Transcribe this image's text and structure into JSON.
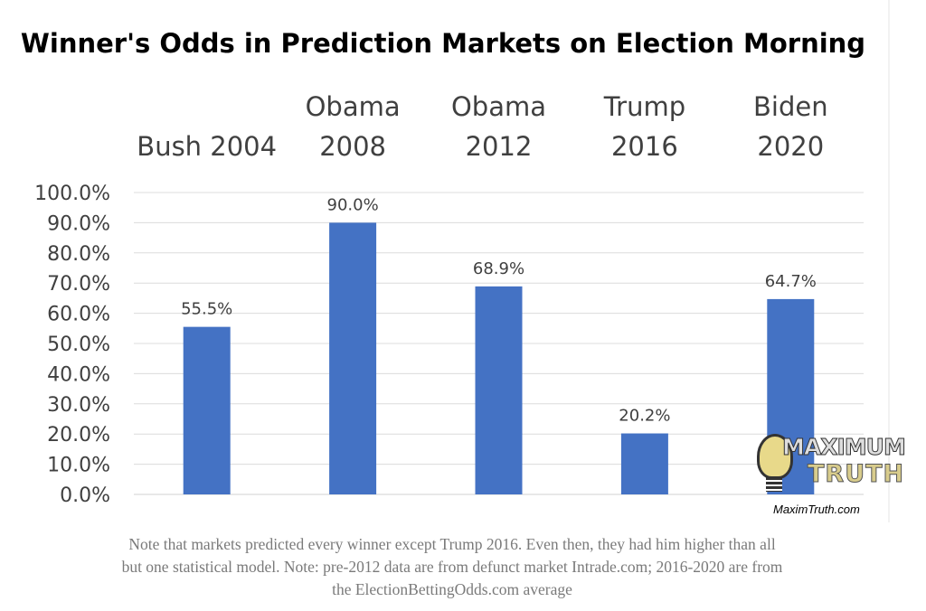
{
  "chart_data": {
    "type": "bar",
    "title": "Winner's Odds in Prediction Markets on Election Morning",
    "categories": [
      [
        "Bush 2004"
      ],
      [
        "Obama",
        "2008"
      ],
      [
        "Obama",
        "2012"
      ],
      [
        "Trump",
        "2016"
      ],
      [
        "Biden",
        "2020"
      ]
    ],
    "values": [
      55.5,
      90.0,
      68.9,
      20.2,
      64.7
    ],
    "data_labels": [
      "55.5%",
      "90.0%",
      "68.9%",
      "20.2%",
      "64.7%"
    ],
    "ylim": [
      0,
      100
    ],
    "yticks": [
      "0.0%",
      "10.0%",
      "20.0%",
      "30.0%",
      "40.0%",
      "50.0%",
      "60.0%",
      "70.0%",
      "80.0%",
      "90.0%",
      "100.0%"
    ],
    "xlabel": "",
    "ylabel": "",
    "grid": true,
    "category_labels_position": "top",
    "bar_color": "#4472c4"
  },
  "note": "Note that markets predicted every winner except Trump 2016. Even then, they had him higher than all but one statistical model. Note: pre-2012 data are from defunct market Intrade.com; 2016-2020 are from the ElectionBettingOdds.com average",
  "logo": {
    "line1": "MAXIMUM",
    "line2": "TRUTH",
    "url": "MaximTruth.com"
  }
}
